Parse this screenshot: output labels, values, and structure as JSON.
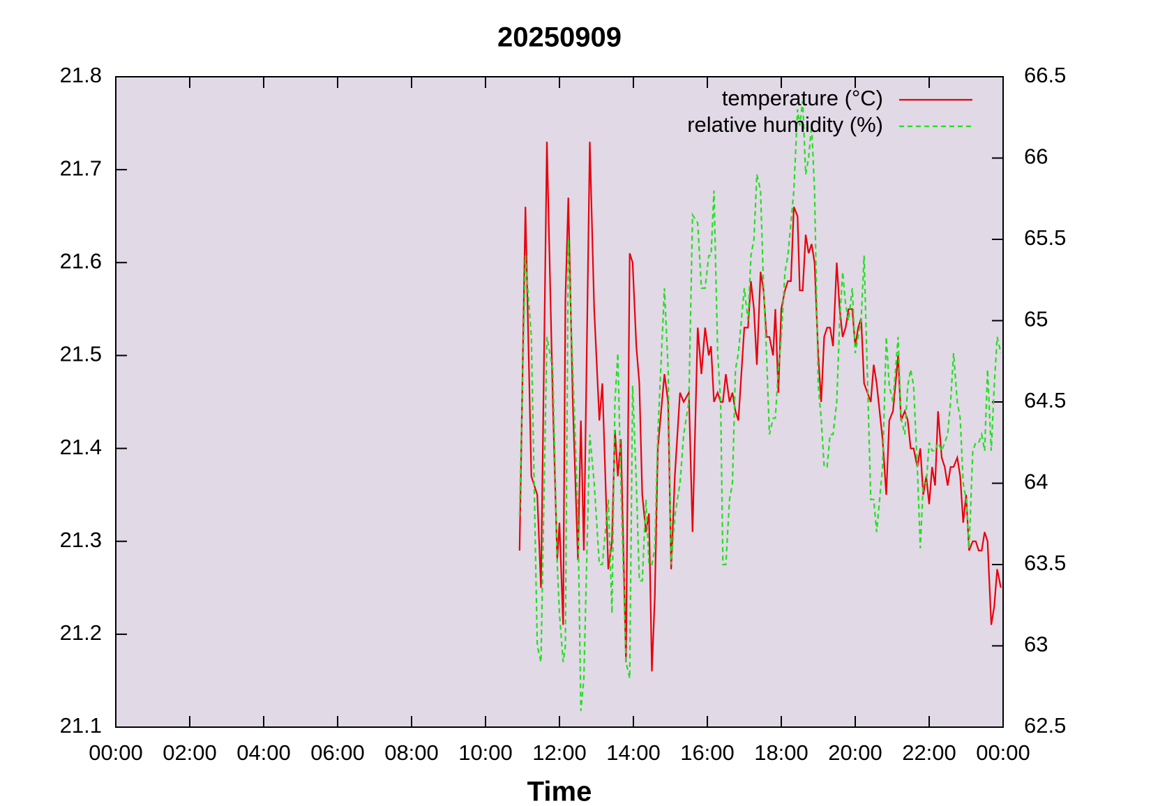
{
  "chart_data": {
    "type": "line",
    "title": "20250909",
    "x_label": "Time",
    "xlim": [
      0,
      24
    ],
    "xticks": [
      {
        "value": 0,
        "label": "00:00"
      },
      {
        "value": 2,
        "label": "02:00"
      },
      {
        "value": 4,
        "label": "04:00"
      },
      {
        "value": 6,
        "label": "06:00"
      },
      {
        "value": 8,
        "label": "08:00"
      },
      {
        "value": 10,
        "label": "10:00"
      },
      {
        "value": 12,
        "label": "12:00"
      },
      {
        "value": 14,
        "label": "14:00"
      },
      {
        "value": 16,
        "label": "16:00"
      },
      {
        "value": 18,
        "label": "18:00"
      },
      {
        "value": 20,
        "label": "20:00"
      },
      {
        "value": 22,
        "label": "22:00"
      },
      {
        "value": 24,
        "label": "00:00"
      }
    ],
    "ylim": [
      21.1,
      21.8
    ],
    "yticks": [
      21.1,
      21.2,
      21.3,
      21.4,
      21.5,
      21.6,
      21.7,
      21.8
    ],
    "y2lim": [
      62.5,
      66.5
    ],
    "y2ticks": [
      62.5,
      63,
      63.5,
      64,
      64.5,
      65,
      65.5,
      66,
      66.5
    ],
    "legend": "upper right",
    "x": [
      10.92,
      11.08,
      11.24,
      11.4,
      11.5,
      11.66,
      11.82,
      11.94,
      12,
      12.1,
      12.16,
      12.24,
      12.36,
      12.5,
      12.58,
      12.66,
      12.82,
      12.94,
      13.08,
      13.16,
      13.32,
      13.42,
      13.5,
      13.58,
      13.66,
      13.8,
      13.9,
      13.98,
      14.08,
      14.16,
      14.24,
      14.34,
      14.42,
      14.5,
      14.58,
      14.66,
      14.84,
      14.94,
      15.02,
      15.12,
      15.26,
      15.36,
      15.5,
      15.6,
      15.74,
      15.84,
      15.94,
      16.04,
      16.1,
      16.18,
      16.28,
      16.36,
      16.42,
      16.5,
      16.6,
      16.68,
      16.76,
      16.84,
      17,
      17.1,
      17.18,
      17.26,
      17.34,
      17.44,
      17.52,
      17.6,
      17.68,
      17.78,
      17.84,
      17.92,
      18,
      18.1,
      18.18,
      18.26,
      18.34,
      18.44,
      18.5,
      18.58,
      18.66,
      18.74,
      18.82,
      18.9,
      19,
      19.08,
      19.16,
      19.24,
      19.32,
      19.4,
      19.5,
      19.58,
      19.66,
      19.74,
      19.82,
      19.92,
      20,
      20.08,
      20.16,
      20.24,
      20.42,
      20.5,
      20.58,
      20.74,
      20.84,
      20.92,
      21.02,
      21.16,
      21.24,
      21.34,
      21.42,
      21.5,
      21.58,
      21.68,
      21.76,
      21.84,
      21.92,
      22,
      22.08,
      22.16,
      22.24,
      22.34,
      22.42,
      22.5,
      22.58,
      22.66,
      22.76,
      22.84,
      22.92,
      23,
      23.08,
      23.18,
      23.26,
      23.34,
      23.42,
      23.5,
      23.58,
      23.68,
      23.76,
      23.84,
      23.94
    ],
    "series": [
      {
        "name": "temperature (°C)",
        "color": "#e8000b",
        "dash": "solid",
        "axis": "y",
        "values": [
          21.29,
          21.66,
          21.37,
          21.35,
          21.25,
          21.73,
          21.45,
          21.28,
          21.32,
          21.21,
          21.56,
          21.67,
          21.45,
          21.28,
          21.43,
          21.29,
          21.73,
          21.55,
          21.43,
          21.47,
          21.27,
          21.3,
          21.42,
          21.37,
          21.41,
          21.17,
          21.61,
          21.6,
          21.51,
          21.47,
          21.35,
          21.31,
          21.33,
          21.16,
          21.24,
          21.4,
          21.48,
          21.45,
          21.27,
          21.37,
          21.46,
          21.45,
          21.46,
          21.31,
          21.53,
          21.48,
          21.53,
          21.5,
          21.51,
          21.45,
          21.46,
          21.45,
          21.45,
          21.48,
          21.45,
          21.46,
          21.44,
          21.43,
          21.53,
          21.53,
          21.58,
          21.55,
          21.49,
          21.59,
          21.57,
          21.52,
          21.52,
          21.5,
          21.55,
          21.46,
          21.55,
          21.57,
          21.58,
          21.58,
          21.66,
          21.65,
          21.57,
          21.57,
          21.63,
          21.61,
          21.62,
          21.6,
          21.5,
          21.45,
          21.52,
          21.53,
          21.53,
          21.51,
          21.6,
          21.55,
          21.52,
          21.53,
          21.55,
          21.55,
          21.51,
          21.53,
          21.54,
          21.47,
          21.45,
          21.49,
          21.47,
          21.41,
          21.35,
          21.43,
          21.44,
          21.5,
          21.43,
          21.44,
          21.43,
          21.4,
          21.4,
          21.38,
          21.4,
          21.35,
          21.37,
          21.34,
          21.38,
          21.36,
          21.44,
          21.39,
          21.38,
          21.36,
          21.38,
          21.38,
          21.39,
          21.37,
          21.32,
          21.35,
          21.29,
          21.3,
          21.3,
          21.29,
          21.29,
          21.31,
          21.3,
          21.21,
          21.23,
          21.27,
          21.25
        ]
      },
      {
        "name": "relative humidity (%)",
        "color": "#22e022",
        "dash": "dashed",
        "axis": "y2",
        "values": [
          63.8,
          65.4,
          64.9,
          63,
          62.9,
          64.9,
          64.7,
          63.5,
          63.2,
          62.9,
          63,
          65.5,
          64.7,
          63.8,
          62.6,
          62.8,
          64.3,
          64,
          63.5,
          63.5,
          63.9,
          63.2,
          64.5,
          64.8,
          64,
          62.9,
          62.8,
          64.6,
          64,
          63.4,
          63.4,
          63.9,
          63.5,
          63.5,
          63.6,
          64.3,
          65.2,
          64.7,
          63.5,
          63.8,
          64,
          64.3,
          64.5,
          65.65,
          65.6,
          65.2,
          65.2,
          65.4,
          65.4,
          65.8,
          64.8,
          64.5,
          63.5,
          63.5,
          63.9,
          64,
          64.7,
          64.8,
          65.2,
          65,
          65.4,
          65.5,
          65.9,
          65.8,
          65.2,
          64.8,
          64.3,
          64.4,
          64.4,
          64.7,
          64.9,
          65.3,
          65.4,
          65.6,
          65.8,
          66.3,
          66.2,
          66.35,
          65.9,
          66,
          66.2,
          65.8,
          64.6,
          64.4,
          64.1,
          64.1,
          64.3,
          64.3,
          64.5,
          65,
          65.3,
          65.1,
          65,
          65.2,
          64.8,
          64.9,
          65,
          65.4,
          63.9,
          63.9,
          63.7,
          64.1,
          64.9,
          64.6,
          64.5,
          64.9,
          64.4,
          64.3,
          64.6,
          64.7,
          64.6,
          64.1,
          63.6,
          64,
          64,
          64.25,
          64.2,
          64.2,
          64.25,
          64.2,
          64.25,
          64.3,
          64.5,
          64.8,
          64.5,
          64.4,
          64,
          63.9,
          63.6,
          64.2,
          64.25,
          64.25,
          64.3,
          64.2,
          64.7,
          64.2,
          64.6,
          64.9,
          64.8
        ]
      }
    ]
  }
}
